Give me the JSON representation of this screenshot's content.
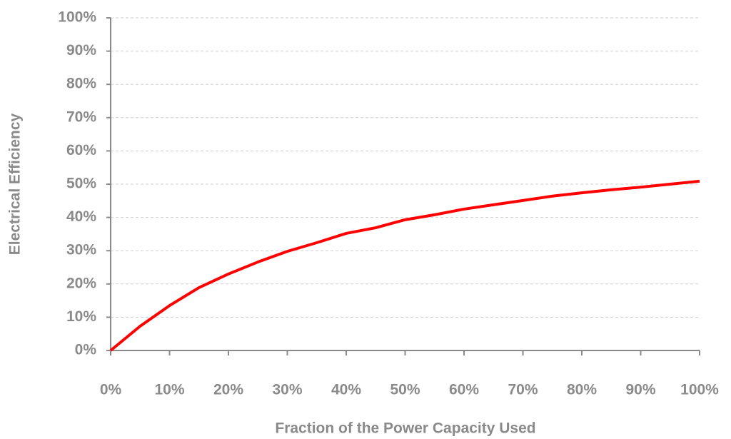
{
  "chart_data": {
    "type": "line",
    "xlabel": "Fraction of the Power Capacity Used",
    "ylabel": "Electrical Efficiency",
    "x": [
      0,
      5,
      10,
      15,
      20,
      25,
      30,
      35,
      40,
      45,
      50,
      55,
      60,
      65,
      70,
      75,
      80,
      85,
      90,
      95,
      100
    ],
    "series": [
      {
        "color": "#ff0000",
        "values": [
          0,
          7.3,
          13.5,
          18.9,
          23,
          26.6,
          29.8,
          32.4,
          35.2,
          36.9,
          39.3,
          40.8,
          42.5,
          43.8,
          45.1,
          46.4,
          47.4,
          48.3,
          49.1,
          50,
          50.9
        ]
      }
    ],
    "xlim": [
      0,
      100
    ],
    "ylim": [
      0,
      100
    ],
    "xticks": [
      {
        "value": 0,
        "label": "0%"
      },
      {
        "value": 10,
        "label": "10%"
      },
      {
        "value": 20,
        "label": "20%"
      },
      {
        "value": 30,
        "label": "30%"
      },
      {
        "value": 40,
        "label": "40%"
      },
      {
        "value": 50,
        "label": "50%"
      },
      {
        "value": 60,
        "label": "60%"
      },
      {
        "value": 70,
        "label": "70%"
      },
      {
        "value": 80,
        "label": "80%"
      },
      {
        "value": 90,
        "label": "90%"
      },
      {
        "value": 100,
        "label": "100%"
      }
    ],
    "yticks": [
      {
        "value": 0,
        "label": "0%"
      },
      {
        "value": 10,
        "label": "10%"
      },
      {
        "value": 20,
        "label": "20%"
      },
      {
        "value": 30,
        "label": "30%"
      },
      {
        "value": 40,
        "label": "40%"
      },
      {
        "value": 50,
        "label": "50%"
      },
      {
        "value": 60,
        "label": "60%"
      },
      {
        "value": 70,
        "label": "70%"
      },
      {
        "value": 80,
        "label": "80%"
      },
      {
        "value": 90,
        "label": "90%"
      },
      {
        "value": 100,
        "label": "100%"
      }
    ],
    "grid": true
  }
}
